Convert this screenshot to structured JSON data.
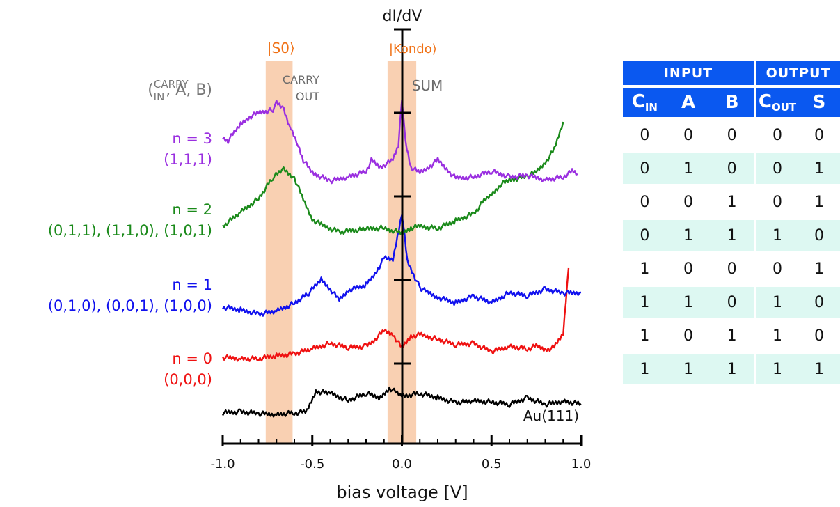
{
  "chart_data": {
    "type": "line",
    "title": "",
    "ylabel": "dI/dV",
    "xlabel": "bias voltage [V]",
    "xlim": [
      -1.0,
      1.0
    ],
    "x_ticks": [
      "-1.0",
      "-0.5",
      "0.0",
      "0.5",
      "1.0"
    ],
    "bands": [
      {
        "label": "|S0⟩",
        "x": [
          -0.76,
          -0.61
        ],
        "label_color": "#f07014"
      },
      {
        "label": "|Kondo⟩",
        "x": [
          -0.08,
          0.08
        ],
        "label_color": "#f07014"
      }
    ],
    "band_annotations": [
      "CARRY",
      "OUT",
      "SUM"
    ],
    "row_header": {
      "prefix": "(",
      "super": "CARRY",
      "sub": "IN",
      "suffix": ", A, B)"
    },
    "series": [
      {
        "name": "Au(111)",
        "color": "#000000",
        "label_lines": [],
        "points": [
          [
            -1.0,
            2
          ],
          [
            -0.9,
            4
          ],
          [
            -0.8,
            1
          ],
          [
            -0.7,
            0
          ],
          [
            -0.6,
            2
          ],
          [
            -0.53,
            4
          ],
          [
            -0.48,
            33
          ],
          [
            -0.4,
            30
          ],
          [
            -0.3,
            20
          ],
          [
            -0.2,
            30
          ],
          [
            -0.12,
            24
          ],
          [
            -0.07,
            38
          ],
          [
            0.0,
            26
          ],
          [
            0.1,
            30
          ],
          [
            0.2,
            24
          ],
          [
            0.3,
            17
          ],
          [
            0.4,
            19
          ],
          [
            0.5,
            18
          ],
          [
            0.6,
            14
          ],
          [
            0.7,
            24
          ],
          [
            0.8,
            14
          ],
          [
            0.9,
            19
          ],
          [
            1.0,
            15
          ]
        ]
      },
      {
        "name": "n = 0",
        "color": "#ef1111",
        "label_lines": [
          "n = 0",
          "(0,0,0)"
        ],
        "points": [
          [
            -1.0,
            2
          ],
          [
            -0.9,
            0
          ],
          [
            -0.8,
            0
          ],
          [
            -0.7,
            4
          ],
          [
            -0.6,
            7
          ],
          [
            -0.5,
            14
          ],
          [
            -0.4,
            22
          ],
          [
            -0.3,
            16
          ],
          [
            -0.2,
            18
          ],
          [
            -0.15,
            28
          ],
          [
            -0.1,
            40
          ],
          [
            -0.05,
            35
          ],
          [
            0.0,
            15
          ],
          [
            0.05,
            32
          ],
          [
            0.1,
            34
          ],
          [
            0.2,
            28
          ],
          [
            0.3,
            20
          ],
          [
            0.4,
            22
          ],
          [
            0.5,
            10
          ],
          [
            0.6,
            18
          ],
          [
            0.7,
            14
          ],
          [
            0.75,
            18
          ],
          [
            0.8,
            13
          ],
          [
            0.85,
            16
          ],
          [
            0.9,
            36
          ],
          [
            0.93,
            130
          ]
        ]
      },
      {
        "name": "n = 1",
        "color": "#1111ee",
        "label_lines": [
          "n = 1",
          "(0,1,0), (0,0,1), (1,0,0)"
        ],
        "points": [
          [
            -1.0,
            14
          ],
          [
            -0.9,
            10
          ],
          [
            -0.8,
            4
          ],
          [
            -0.7,
            8
          ],
          [
            -0.6,
            20
          ],
          [
            -0.52,
            34
          ],
          [
            -0.45,
            54
          ],
          [
            -0.4,
            40
          ],
          [
            -0.35,
            24
          ],
          [
            -0.3,
            38
          ],
          [
            -0.2,
            46
          ],
          [
            -0.15,
            62
          ],
          [
            -0.1,
            84
          ],
          [
            -0.05,
            82
          ],
          [
            0.0,
            150
          ],
          [
            0.03,
            80
          ],
          [
            0.1,
            42
          ],
          [
            0.15,
            34
          ],
          [
            0.2,
            28
          ],
          [
            0.3,
            20
          ],
          [
            0.4,
            30
          ],
          [
            0.5,
            20
          ],
          [
            0.6,
            35
          ],
          [
            0.7,
            30
          ],
          [
            0.8,
            40
          ],
          [
            0.9,
            34
          ],
          [
            1.0,
            35
          ]
        ]
      },
      {
        "name": "n = 2",
        "color": "#1a8a1a",
        "label_lines": [
          "n = 2",
          "(0,1,1), (1,1,0), (1,0,1)"
        ],
        "points": [
          [
            -1.0,
            0
          ],
          [
            -0.9,
            20
          ],
          [
            -0.8,
            40
          ],
          [
            -0.72,
            70
          ],
          [
            -0.66,
            82
          ],
          [
            -0.6,
            70
          ],
          [
            -0.55,
            38
          ],
          [
            -0.5,
            10
          ],
          [
            -0.45,
            2
          ],
          [
            -0.35,
            -8
          ],
          [
            -0.2,
            -4
          ],
          [
            -0.1,
            -2
          ],
          [
            -0.05,
            -6
          ],
          [
            0.0,
            -10
          ],
          [
            0.05,
            -2
          ],
          [
            0.1,
            0
          ],
          [
            0.2,
            -3
          ],
          [
            0.3,
            8
          ],
          [
            0.4,
            18
          ],
          [
            0.45,
            34
          ],
          [
            0.5,
            46
          ],
          [
            0.55,
            60
          ],
          [
            0.6,
            66
          ],
          [
            0.7,
            72
          ],
          [
            0.75,
            78
          ],
          [
            0.8,
            92
          ],
          [
            0.85,
            110
          ],
          [
            0.9,
            150
          ]
        ]
      },
      {
        "name": "n = 3",
        "color": "#9a2fe0",
        "label_lines": [
          "n = 3",
          "(1,1,1)"
        ],
        "points": [
          [
            -1.0,
            -10
          ],
          [
            -0.97,
            -14
          ],
          [
            -0.9,
            10
          ],
          [
            -0.85,
            20
          ],
          [
            -0.8,
            26
          ],
          [
            -0.72,
            30
          ],
          [
            -0.7,
            40
          ],
          [
            -0.66,
            32
          ],
          [
            -0.62,
            2
          ],
          [
            -0.58,
            -20
          ],
          [
            -0.55,
            -42
          ],
          [
            -0.5,
            -60
          ],
          [
            -0.4,
            -72
          ],
          [
            -0.3,
            -66
          ],
          [
            -0.2,
            -58
          ],
          [
            -0.17,
            -42
          ],
          [
            -0.12,
            -52
          ],
          [
            -0.05,
            -42
          ],
          [
            -0.02,
            -22
          ],
          [
            0.0,
            48
          ],
          [
            0.02,
            -16
          ],
          [
            0.05,
            -52
          ],
          [
            0.1,
            -60
          ],
          [
            0.15,
            -52
          ],
          [
            0.2,
            -42
          ],
          [
            0.25,
            -55
          ],
          [
            0.3,
            -68
          ],
          [
            0.4,
            -66
          ],
          [
            0.5,
            -58
          ],
          [
            0.6,
            -66
          ],
          [
            0.7,
            -64
          ],
          [
            0.8,
            -70
          ],
          [
            0.9,
            -66
          ],
          [
            0.95,
            -58
          ],
          [
            0.98,
            -62
          ]
        ]
      }
    ]
  },
  "truth_table": {
    "group_headers": [
      "INPUT",
      "OUTPUT"
    ],
    "input_cols": [
      {
        "main": "C",
        "sub": "IN"
      },
      {
        "main": "A",
        "sub": ""
      },
      {
        "main": "B",
        "sub": ""
      }
    ],
    "output_cols": [
      {
        "main": "C",
        "sub": "OUT"
      },
      {
        "main": "S",
        "sub": ""
      }
    ],
    "rows": [
      [
        "0",
        "0",
        "0",
        "0",
        "0"
      ],
      [
        "0",
        "1",
        "0",
        "0",
        "1"
      ],
      [
        "0",
        "0",
        "1",
        "0",
        "1"
      ],
      [
        "0",
        "1",
        "1",
        "1",
        "0"
      ],
      [
        "1",
        "0",
        "0",
        "0",
        "1"
      ],
      [
        "1",
        "1",
        "0",
        "1",
        "0"
      ],
      [
        "1",
        "0",
        "1",
        "1",
        "0"
      ],
      [
        "1",
        "1",
        "1",
        "1",
        "1"
      ]
    ],
    "shade_color": "#ddf8f2",
    "header_color": "#0a58f0"
  }
}
